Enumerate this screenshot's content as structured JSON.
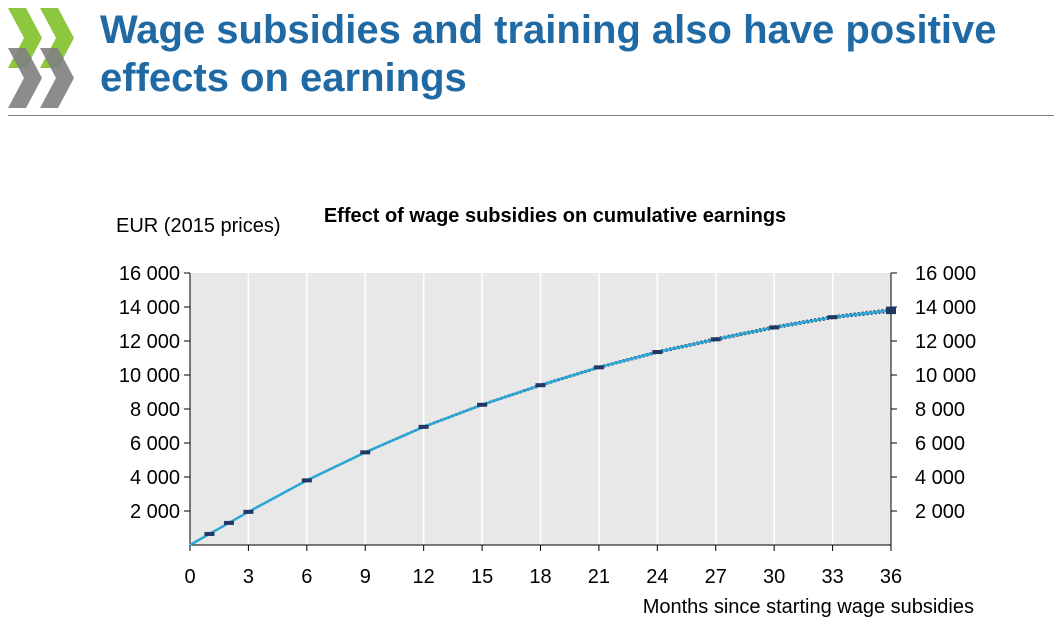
{
  "slide": {
    "title": "Wage subsidies and training also have positive effects on earnings"
  },
  "colors": {
    "title": "#1f6aa5",
    "logo_green": "#8dc63f",
    "logo_grey": "#7f7f7f",
    "plot_background": "#e8e8e8",
    "line_main": "#2aa7d6",
    "line_band": "#1f3864",
    "marker": "#1f3864"
  },
  "chart_data": {
    "type": "line",
    "title": "Effect of  wage subsidies on cumulative earnings",
    "ylabel": "EUR (2015 prices)",
    "xlabel": "Months since starting wage subsidies",
    "xlim": [
      0,
      36
    ],
    "ylim": [
      0,
      16000
    ],
    "grid": "vertical",
    "x_ticks": [
      0,
      3,
      6,
      9,
      12,
      15,
      18,
      21,
      24,
      27,
      30,
      33,
      36
    ],
    "x_tick_labels": [
      "0",
      "3",
      "6",
      "9",
      "12",
      "15",
      "18",
      "21",
      "24",
      "27",
      "30",
      "33",
      "36"
    ],
    "y_ticks": [
      2000,
      4000,
      6000,
      8000,
      10000,
      12000,
      14000,
      16000
    ],
    "y_tick_labels": [
      "2 000",
      "4 000",
      "6 000",
      "8 000",
      "10 000",
      "12 000",
      "14 000",
      "16 000"
    ],
    "right_axis_duplicate": true,
    "series": [
      {
        "x": [
          0,
          1,
          2,
          3,
          6,
          9,
          12,
          15,
          18,
          21,
          24,
          27,
          30,
          33,
          36
        ],
        "values": [
          0,
          650,
          1300,
          1950,
          3800,
          5450,
          6950,
          8250,
          9400,
          10450,
          11350,
          12100,
          12800,
          13400,
          13800
        ]
      }
    ],
    "band_upper": [
      0,
      660,
      1320,
      1980,
      3830,
      5490,
      7000,
      8300,
      9460,
      10510,
      11420,
      12180,
      12880,
      13480,
      13900
    ],
    "band_lower": [
      0,
      640,
      1280,
      1920,
      3770,
      5410,
      6900,
      8200,
      9340,
      10390,
      11280,
      12020,
      12720,
      13320,
      13700
    ],
    "marker_x": [
      1,
      2,
      3,
      6,
      9,
      12,
      15,
      18,
      21,
      24,
      27,
      30,
      33,
      36
    ]
  }
}
